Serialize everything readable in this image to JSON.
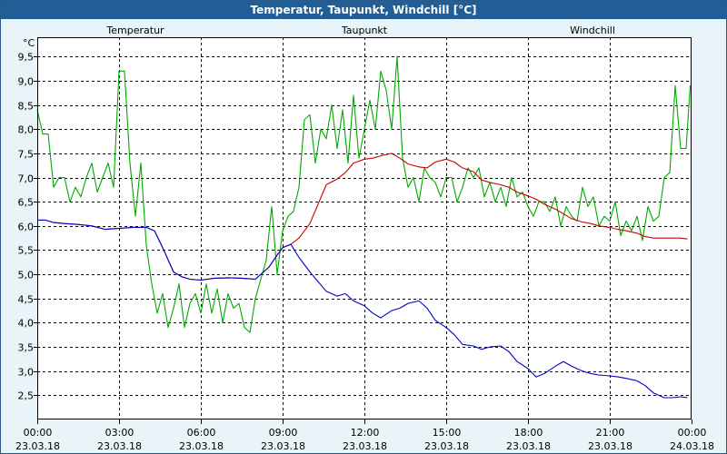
{
  "window": {
    "title": "Temperatur, Taupunkt, Windchill [°C]"
  },
  "colors": {
    "Temperatur": "#cc0000",
    "Taupunkt": "#0000cc",
    "Windchill": "#00aa00",
    "frame_bg": "#e8f4f8",
    "titlebar": "#1f5e96"
  },
  "chart_data": {
    "type": "line",
    "title": "Temperatur, Taupunkt, Windchill [°C]",
    "ylabel": "°C",
    "ylim": [
      2.0,
      9.9
    ],
    "xlim": [
      0,
      24
    ],
    "yticks": [
      "2,5",
      "3,0",
      "3,5",
      "4,0",
      "4,5",
      "5,0",
      "5,5",
      "6,0",
      "6,5",
      "7,0",
      "7,5",
      "8,0",
      "8,5",
      "9,0",
      "9,5"
    ],
    "yvalues": [
      2.5,
      3.0,
      3.5,
      4.0,
      4.5,
      5.0,
      5.5,
      6.0,
      6.5,
      7.0,
      7.5,
      8.0,
      8.5,
      9.0,
      9.5
    ],
    "xticks": [
      {
        "h": 0,
        "time": "00:00",
        "date": "23.03.18"
      },
      {
        "h": 3,
        "time": "03:00",
        "date": "23.03.18"
      },
      {
        "h": 6,
        "time": "06:00",
        "date": "23.03.18"
      },
      {
        "h": 9,
        "time": "09:00",
        "date": "23.03.18"
      },
      {
        "h": 12,
        "time": "12:00",
        "date": "23.03.18"
      },
      {
        "h": 15,
        "time": "15:00",
        "date": "23.03.18"
      },
      {
        "h": 18,
        "time": "18:00",
        "date": "23.03.18"
      },
      {
        "h": 21,
        "time": "21:00",
        "date": "23.03.18"
      },
      {
        "h": 24,
        "time": "00:00",
        "date": "24.03.18"
      }
    ],
    "grid": true,
    "legend_placement": "top",
    "series": [
      {
        "name": "Temperatur",
        "x": [
          0,
          0.3,
          0.6,
          1.0,
          1.5,
          2.0,
          2.5,
          3.0,
          3.5,
          4.0,
          4.3,
          4.6,
          5.0,
          5.3,
          5.6,
          6.0,
          6.5,
          7.0,
          7.5,
          8.0,
          8.5,
          8.8,
          9.0,
          9.3,
          9.6,
          10.0,
          10.3,
          10.6,
          11.0,
          11.3,
          11.6,
          12.0,
          12.3,
          12.6,
          13.0,
          13.3,
          13.6,
          14.0,
          14.3,
          14.6,
          15.0,
          15.3,
          15.6,
          16.0,
          16.3,
          16.6,
          17.0,
          17.3,
          17.6,
          18.0,
          18.3,
          18.6,
          19.0,
          19.3,
          19.6,
          20.0,
          20.3,
          20.6,
          21.0,
          21.3,
          21.6,
          22.0,
          22.3,
          22.6,
          23.0,
          23.3,
          23.6,
          23.85
        ],
        "y": [
          6.12,
          6.12,
          6.07,
          6.05,
          6.03,
          6.0,
          5.93,
          5.95,
          5.97,
          5.97,
          5.9,
          5.55,
          5.05,
          4.95,
          4.9,
          4.88,
          4.92,
          4.93,
          4.92,
          4.9,
          5.15,
          5.4,
          5.55,
          5.62,
          5.75,
          6.05,
          6.45,
          6.85,
          6.97,
          7.1,
          7.3,
          7.38,
          7.4,
          7.45,
          7.5,
          7.4,
          7.28,
          7.22,
          7.2,
          7.32,
          7.38,
          7.32,
          7.2,
          7.12,
          6.95,
          6.9,
          6.85,
          6.8,
          6.7,
          6.62,
          6.55,
          6.45,
          6.35,
          6.25,
          6.15,
          6.08,
          6.05,
          6.0,
          5.97,
          5.93,
          5.9,
          5.85,
          5.78,
          5.75,
          5.75,
          5.75,
          5.75,
          5.73
        ]
      },
      {
        "name": "Taupunkt",
        "x": [
          0,
          0.3,
          0.6,
          1.0,
          1.5,
          2.0,
          2.5,
          3.0,
          3.5,
          4.0,
          4.3,
          4.6,
          5.0,
          5.3,
          5.6,
          6.0,
          6.5,
          7.0,
          7.5,
          8.0,
          8.5,
          8.8,
          9.0,
          9.3,
          9.6,
          10.0,
          10.3,
          10.6,
          11.0,
          11.3,
          11.6,
          12.0,
          12.3,
          12.6,
          13.0,
          13.3,
          13.6,
          14.0,
          14.3,
          14.6,
          15.0,
          15.3,
          15.6,
          16.0,
          16.3,
          16.6,
          17.0,
          17.3,
          17.6,
          18.0,
          18.3,
          18.6,
          19.0,
          19.3,
          19.6,
          20.0,
          20.3,
          20.6,
          21.0,
          21.3,
          21.6,
          22.0,
          22.3,
          22.6,
          23.0,
          23.3,
          23.6,
          23.85
        ],
        "y": [
          6.12,
          6.12,
          6.07,
          6.05,
          6.03,
          6.0,
          5.93,
          5.95,
          5.97,
          5.97,
          5.9,
          5.55,
          5.05,
          4.95,
          4.9,
          4.88,
          4.92,
          4.93,
          4.92,
          4.9,
          5.15,
          5.4,
          5.55,
          5.62,
          5.35,
          5.05,
          4.85,
          4.65,
          4.55,
          4.6,
          4.45,
          4.35,
          4.2,
          4.1,
          4.25,
          4.3,
          4.4,
          4.45,
          4.3,
          4.05,
          3.9,
          3.75,
          3.55,
          3.52,
          3.45,
          3.5,
          3.52,
          3.4,
          3.2,
          3.05,
          2.88,
          2.95,
          3.1,
          3.2,
          3.1,
          3.0,
          2.95,
          2.92,
          2.9,
          2.88,
          2.85,
          2.8,
          2.7,
          2.55,
          2.45,
          2.45,
          2.47,
          2.45
        ]
      },
      {
        "name": "Windchill",
        "x": [
          0,
          0.2,
          0.4,
          0.6,
          0.8,
          1.0,
          1.2,
          1.4,
          1.6,
          1.8,
          2.0,
          2.2,
          2.4,
          2.6,
          2.8,
          3.0,
          3.2,
          3.4,
          3.6,
          3.8,
          4.0,
          4.2,
          4.4,
          4.6,
          4.8,
          5.0,
          5.2,
          5.4,
          5.6,
          5.8,
          6.0,
          6.2,
          6.4,
          6.6,
          6.8,
          7.0,
          7.2,
          7.4,
          7.6,
          7.8,
          8.0,
          8.2,
          8.4,
          8.6,
          8.8,
          9.0,
          9.2,
          9.4,
          9.6,
          9.8,
          10.0,
          10.2,
          10.4,
          10.6,
          10.8,
          11.0,
          11.2,
          11.4,
          11.6,
          11.8,
          12.0,
          12.2,
          12.4,
          12.6,
          12.8,
          13.0,
          13.2,
          13.4,
          13.6,
          13.8,
          14.0,
          14.2,
          14.4,
          14.6,
          14.8,
          15.0,
          15.2,
          15.4,
          15.6,
          15.8,
          16.0,
          16.2,
          16.4,
          16.6,
          16.8,
          17.0,
          17.2,
          17.4,
          17.6,
          17.8,
          18.0,
          18.2,
          18.4,
          18.6,
          18.8,
          19.0,
          19.2,
          19.4,
          19.6,
          19.8,
          20.0,
          20.2,
          20.4,
          20.6,
          20.8,
          21.0,
          21.2,
          21.4,
          21.6,
          21.8,
          22.0,
          22.2,
          22.4,
          22.6,
          22.8,
          23.0,
          23.2,
          23.4,
          23.6,
          23.8,
          23.95
        ],
        "y": [
          8.4,
          7.9,
          7.9,
          6.8,
          7.0,
          7.0,
          6.5,
          6.8,
          6.6,
          7.0,
          7.3,
          6.7,
          7.0,
          7.3,
          6.8,
          9.2,
          9.2,
          7.3,
          6.2,
          7.3,
          5.6,
          4.8,
          4.2,
          4.6,
          3.9,
          4.3,
          4.8,
          3.9,
          4.4,
          4.6,
          4.2,
          4.8,
          4.2,
          4.7,
          4.0,
          4.6,
          4.3,
          4.4,
          3.9,
          3.8,
          4.5,
          4.9,
          5.3,
          6.4,
          5.0,
          5.9,
          6.2,
          6.3,
          6.8,
          8.2,
          8.3,
          7.3,
          8.0,
          7.8,
          8.5,
          7.6,
          8.4,
          7.3,
          8.7,
          7.4,
          8.0,
          8.6,
          8.0,
          9.2,
          8.8,
          8.0,
          9.5,
          7.4,
          6.8,
          7.0,
          6.5,
          7.2,
          7.0,
          6.9,
          6.6,
          7.0,
          7.0,
          6.5,
          6.8,
          7.2,
          7.0,
          7.2,
          6.6,
          6.9,
          6.5,
          6.8,
          6.4,
          7.0,
          6.6,
          6.7,
          6.4,
          6.2,
          6.5,
          6.5,
          6.3,
          6.6,
          6.0,
          6.4,
          6.2,
          6.1,
          6.8,
          6.4,
          6.6,
          6.0,
          6.2,
          6.1,
          6.5,
          5.8,
          6.1,
          5.9,
          6.2,
          5.7,
          6.4,
          6.1,
          6.2,
          7.0,
          7.1,
          8.9,
          7.6,
          7.6,
          8.9
        ]
      }
    ]
  }
}
